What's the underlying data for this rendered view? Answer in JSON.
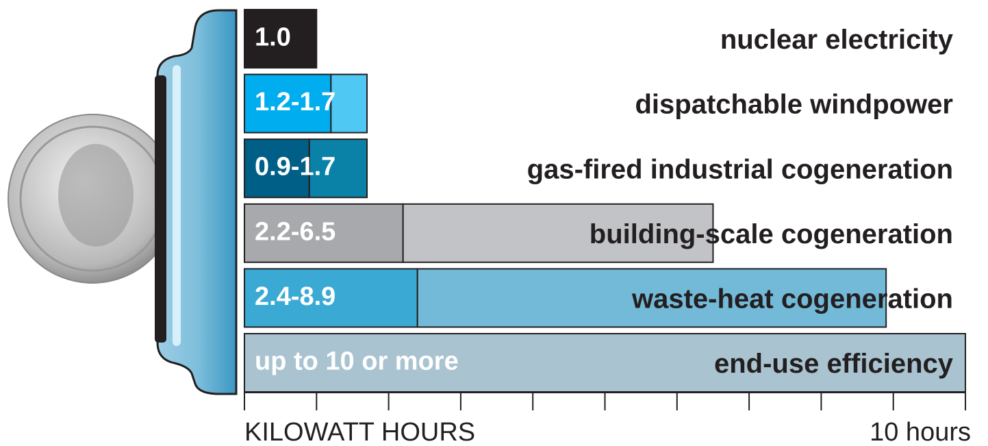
{
  "chart_data": {
    "type": "range-bar",
    "categories": [
      "nuclear electricity",
      "dispatchable windpower",
      "gas-fired industrial cogeneration",
      "building-scale cogeneration",
      "waste-heat cogeneration",
      "end-use efficiency"
    ],
    "low": [
      1.0,
      1.2,
      0.9,
      2.2,
      2.4,
      null
    ],
    "high": [
      null,
      1.7,
      1.7,
      6.5,
      8.9,
      10
    ],
    "value_labels": [
      "1.0",
      "1.2-1.7",
      "0.9-1.7",
      "2.2-6.5",
      "2.4-8.9",
      "up to 10 or more"
    ],
    "low_colors": [
      "#231f20",
      "#00aeef",
      "#005f86",
      "#a7a9ac",
      "#3aaad4",
      null
    ],
    "high_colors": [
      null,
      "#4fc8f4",
      "#0a82a8",
      "#c2c3c6",
      "#73b9d8",
      "#a9c3d1"
    ],
    "xlim": [
      0,
      10
    ],
    "xticks": [
      0,
      1,
      2,
      3,
      4,
      5,
      6,
      7,
      8,
      9,
      {
        "value": 10,
        "label": "10 hours"
      }
    ],
    "x_label": "KILOWATT HOURS"
  }
}
